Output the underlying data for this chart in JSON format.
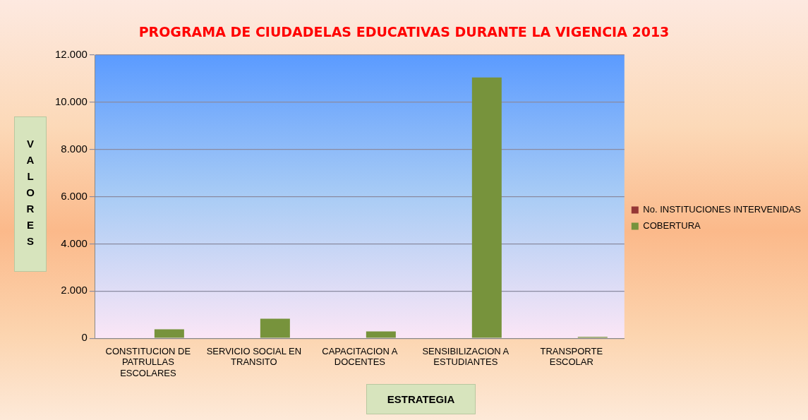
{
  "chart_data": {
    "type": "bar",
    "title": "PROGRAMA DE CIUDADELAS EDUCATIVAS DURANTE LA VIGENCIA 2013",
    "xlabel": "ESTRATEGIA",
    "ylabel": "VALORES",
    "categories": [
      "CONSTITUCION DE PATRULLAS ESCOLARES",
      "SERVICIO SOCIAL EN TRANSITO",
      "CAPACITACION A DOCENTES",
      "SENSIBILIZACION A ESTUDIANTES",
      "TRANSPORTE ESCOLAR"
    ],
    "series": [
      {
        "name": "No. INSTITUCIONES INTERVENIDAS",
        "color": "#953735",
        "values": [
          0,
          0,
          0,
          0,
          0
        ]
      },
      {
        "name": "COBERTURA",
        "color": "#77933c",
        "values": [
          380,
          830,
          290,
          11050,
          60
        ]
      }
    ],
    "ylim": [
      0,
      12000
    ],
    "yticks": [
      {
        "value": 0,
        "label": "0"
      },
      {
        "value": 2000,
        "label": "2.000"
      },
      {
        "value": 4000,
        "label": "4.000"
      },
      {
        "value": 6000,
        "label": "6.000"
      },
      {
        "value": 8000,
        "label": "8.000"
      },
      {
        "value": 10000,
        "label": "10.000"
      },
      {
        "value": 12000,
        "label": "12.000"
      }
    ],
    "grid": "y",
    "legend": "right"
  }
}
